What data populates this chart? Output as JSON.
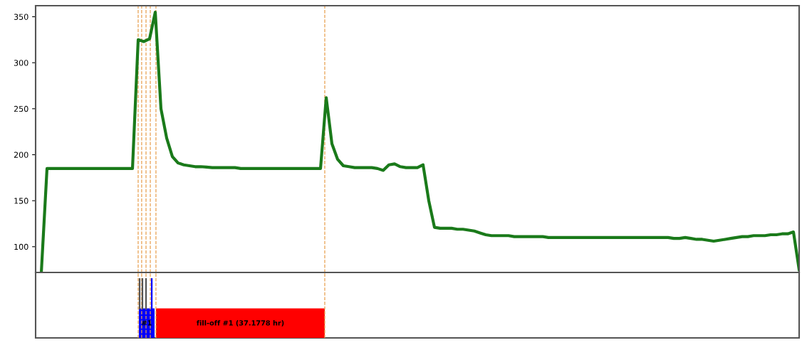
{
  "chart_data": [
    {
      "type": "line",
      "categories": [
        null,
        null,
        null,
        null,
        null,
        null,
        null,
        null,
        null,
        null,
        null,
        null,
        null,
        null,
        null,
        null,
        null,
        null,
        null,
        null,
        null,
        null,
        null,
        null,
        null,
        null,
        null,
        null,
        null,
        null,
        null,
        null,
        null,
        null,
        null,
        null,
        null,
        null,
        null,
        null,
        null,
        null,
        null,
        null,
        null,
        null,
        null,
        null,
        null,
        null,
        null,
        null,
        null,
        null,
        null,
        null,
        null,
        null,
        null,
        null,
        null,
        null,
        null,
        null,
        null,
        null,
        null,
        null,
        null,
        null,
        null,
        null,
        null,
        null,
        null,
        null,
        null,
        null,
        null,
        null,
        null,
        null,
        null,
        null,
        null,
        null,
        null,
        null,
        null,
        null,
        null,
        null,
        null,
        null,
        null,
        null,
        null,
        null,
        null,
        null,
        null,
        null,
        null,
        null,
        null,
        null,
        null,
        null,
        null,
        null,
        null,
        null,
        null,
        null,
        null,
        null,
        null,
        null,
        null,
        null,
        null,
        null,
        null,
        null,
        null,
        null,
        null,
        null,
        null,
        null,
        null,
        null,
        null,
        null,
        null
      ],
      "series": [
        {
          "color": "#1a7a1a",
          "values": [
            null,
            72,
            185,
            185,
            185,
            185,
            185,
            185,
            185,
            185,
            185,
            185,
            185,
            185,
            185,
            185,
            185,
            185,
            325,
            323,
            326,
            355,
            250,
            218,
            198,
            191,
            189,
            188,
            187,
            187,
            186.5,
            186,
            186,
            186,
            186,
            186,
            185,
            185,
            185,
            185,
            185,
            185,
            185,
            185,
            185,
            185,
            185,
            185,
            185,
            185,
            185,
            262,
            212,
            195,
            188,
            187,
            186,
            186,
            186,
            186,
            185,
            183,
            189,
            190,
            187,
            186,
            186,
            186,
            189,
            150,
            121,
            120,
            120,
            120,
            119,
            119,
            118,
            117,
            115,
            113,
            112,
            112,
            112,
            112,
            111,
            111,
            111,
            111,
            111,
            111,
            110,
            110,
            110,
            110,
            110,
            110,
            110,
            110,
            110,
            110,
            110,
            110,
            110,
            110,
            110,
            110,
            110,
            110,
            110,
            110,
            110,
            110,
            109,
            109,
            110,
            109,
            108,
            108,
            107,
            106,
            107,
            108,
            109,
            110,
            111,
            111,
            112,
            112,
            112,
            113,
            113,
            114,
            114,
            116,
            75
          ]
        }
      ],
      "ylim": [
        72,
        362
      ],
      "yticks": [
        100,
        150,
        200,
        250,
        300,
        350
      ],
      "tick_labels": "y",
      "grid": false
    },
    {
      "type": "other",
      "annotations": [
        "#1",
        "fill-off #1 (37.1778 hr)"
      ]
    }
  ]
}
